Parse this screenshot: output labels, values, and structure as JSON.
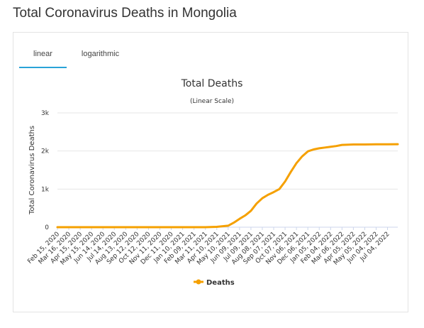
{
  "page": {
    "title": "Total Coronavirus Deaths in Mongolia"
  },
  "tabs": [
    {
      "label": "linear",
      "active": true
    },
    {
      "label": "logarithmic",
      "active": false
    }
  ],
  "colors": {
    "series": "#f5a000",
    "tab_active": "#29a3d8",
    "grid": "#e6e6e6"
  },
  "chart_data": {
    "type": "line",
    "title": "Total Deaths",
    "subtitle": "(Linear Scale)",
    "ylabel": "Total Coronavirus Deaths",
    "xlabel": "",
    "ylim": [
      0,
      3000
    ],
    "yticks": [
      0,
      1000,
      2000,
      3000
    ],
    "ytick_labels": [
      "0",
      "1k",
      "2k",
      "3k"
    ],
    "grid": true,
    "legend_position": "bottom-center",
    "x_tick_labels": [
      "Feb 15, 2020",
      "Mar 16, 2020",
      "Apr 15, 2020",
      "May 15, 2020",
      "Jun 14, 2020",
      "Jul 14, 2020",
      "Aug 13, 2020",
      "Sep 12, 2020",
      "Oct 12, 2020",
      "Nov 11, 2020",
      "Dec 11, 2020",
      "Jan 10, 2021",
      "Feb 09, 2021",
      "Mar 11, 2021",
      "Apr 10, 2021",
      "May 10, 2021",
      "Jun 09, 2021",
      "Jul 09, 2021",
      "Aug 08, 2021",
      "Sep 07, 2021",
      "Oct 07, 2021",
      "Nov 06, 2021",
      "Dec 06, 2021",
      "Jan 05, 2022",
      "Feb 04, 2022",
      "Mar 06, 2022",
      "Apr 05, 2022",
      "May 05, 2022",
      "Jun 04, 2022",
      "Jul 04, 2022"
    ],
    "series": [
      {
        "name": "Deaths",
        "x": [
          "Feb 15, 2020",
          "Mar 11, 2021",
          "Apr 10, 2021",
          "May 10, 2021",
          "May 25, 2021",
          "Jun 09, 2021",
          "Jun 24, 2021",
          "Jul 09, 2021",
          "Jul 24, 2021",
          "Aug 08, 2021",
          "Aug 23, 2021",
          "Sep 07, 2021",
          "Sep 22, 2021",
          "Oct 07, 2021",
          "Oct 22, 2021",
          "Nov 06, 2021",
          "Nov 21, 2021",
          "Dec 06, 2021",
          "Dec 21, 2021",
          "Jan 05, 2022",
          "Jan 20, 2022",
          "Feb 04, 2022",
          "Feb 19, 2022",
          "Mar 06, 2022",
          "Apr 05, 2022",
          "May 05, 2022",
          "Jun 04, 2022",
          "Jul 04, 2022",
          "Jul 31, 2022"
        ],
        "values": [
          0,
          0,
          10,
          40,
          120,
          220,
          310,
          430,
          620,
          760,
          850,
          920,
          1000,
          1200,
          1450,
          1680,
          1860,
          1990,
          2040,
          2070,
          2090,
          2110,
          2130,
          2160,
          2170,
          2170,
          2175,
          2177,
          2179
        ]
      }
    ]
  }
}
